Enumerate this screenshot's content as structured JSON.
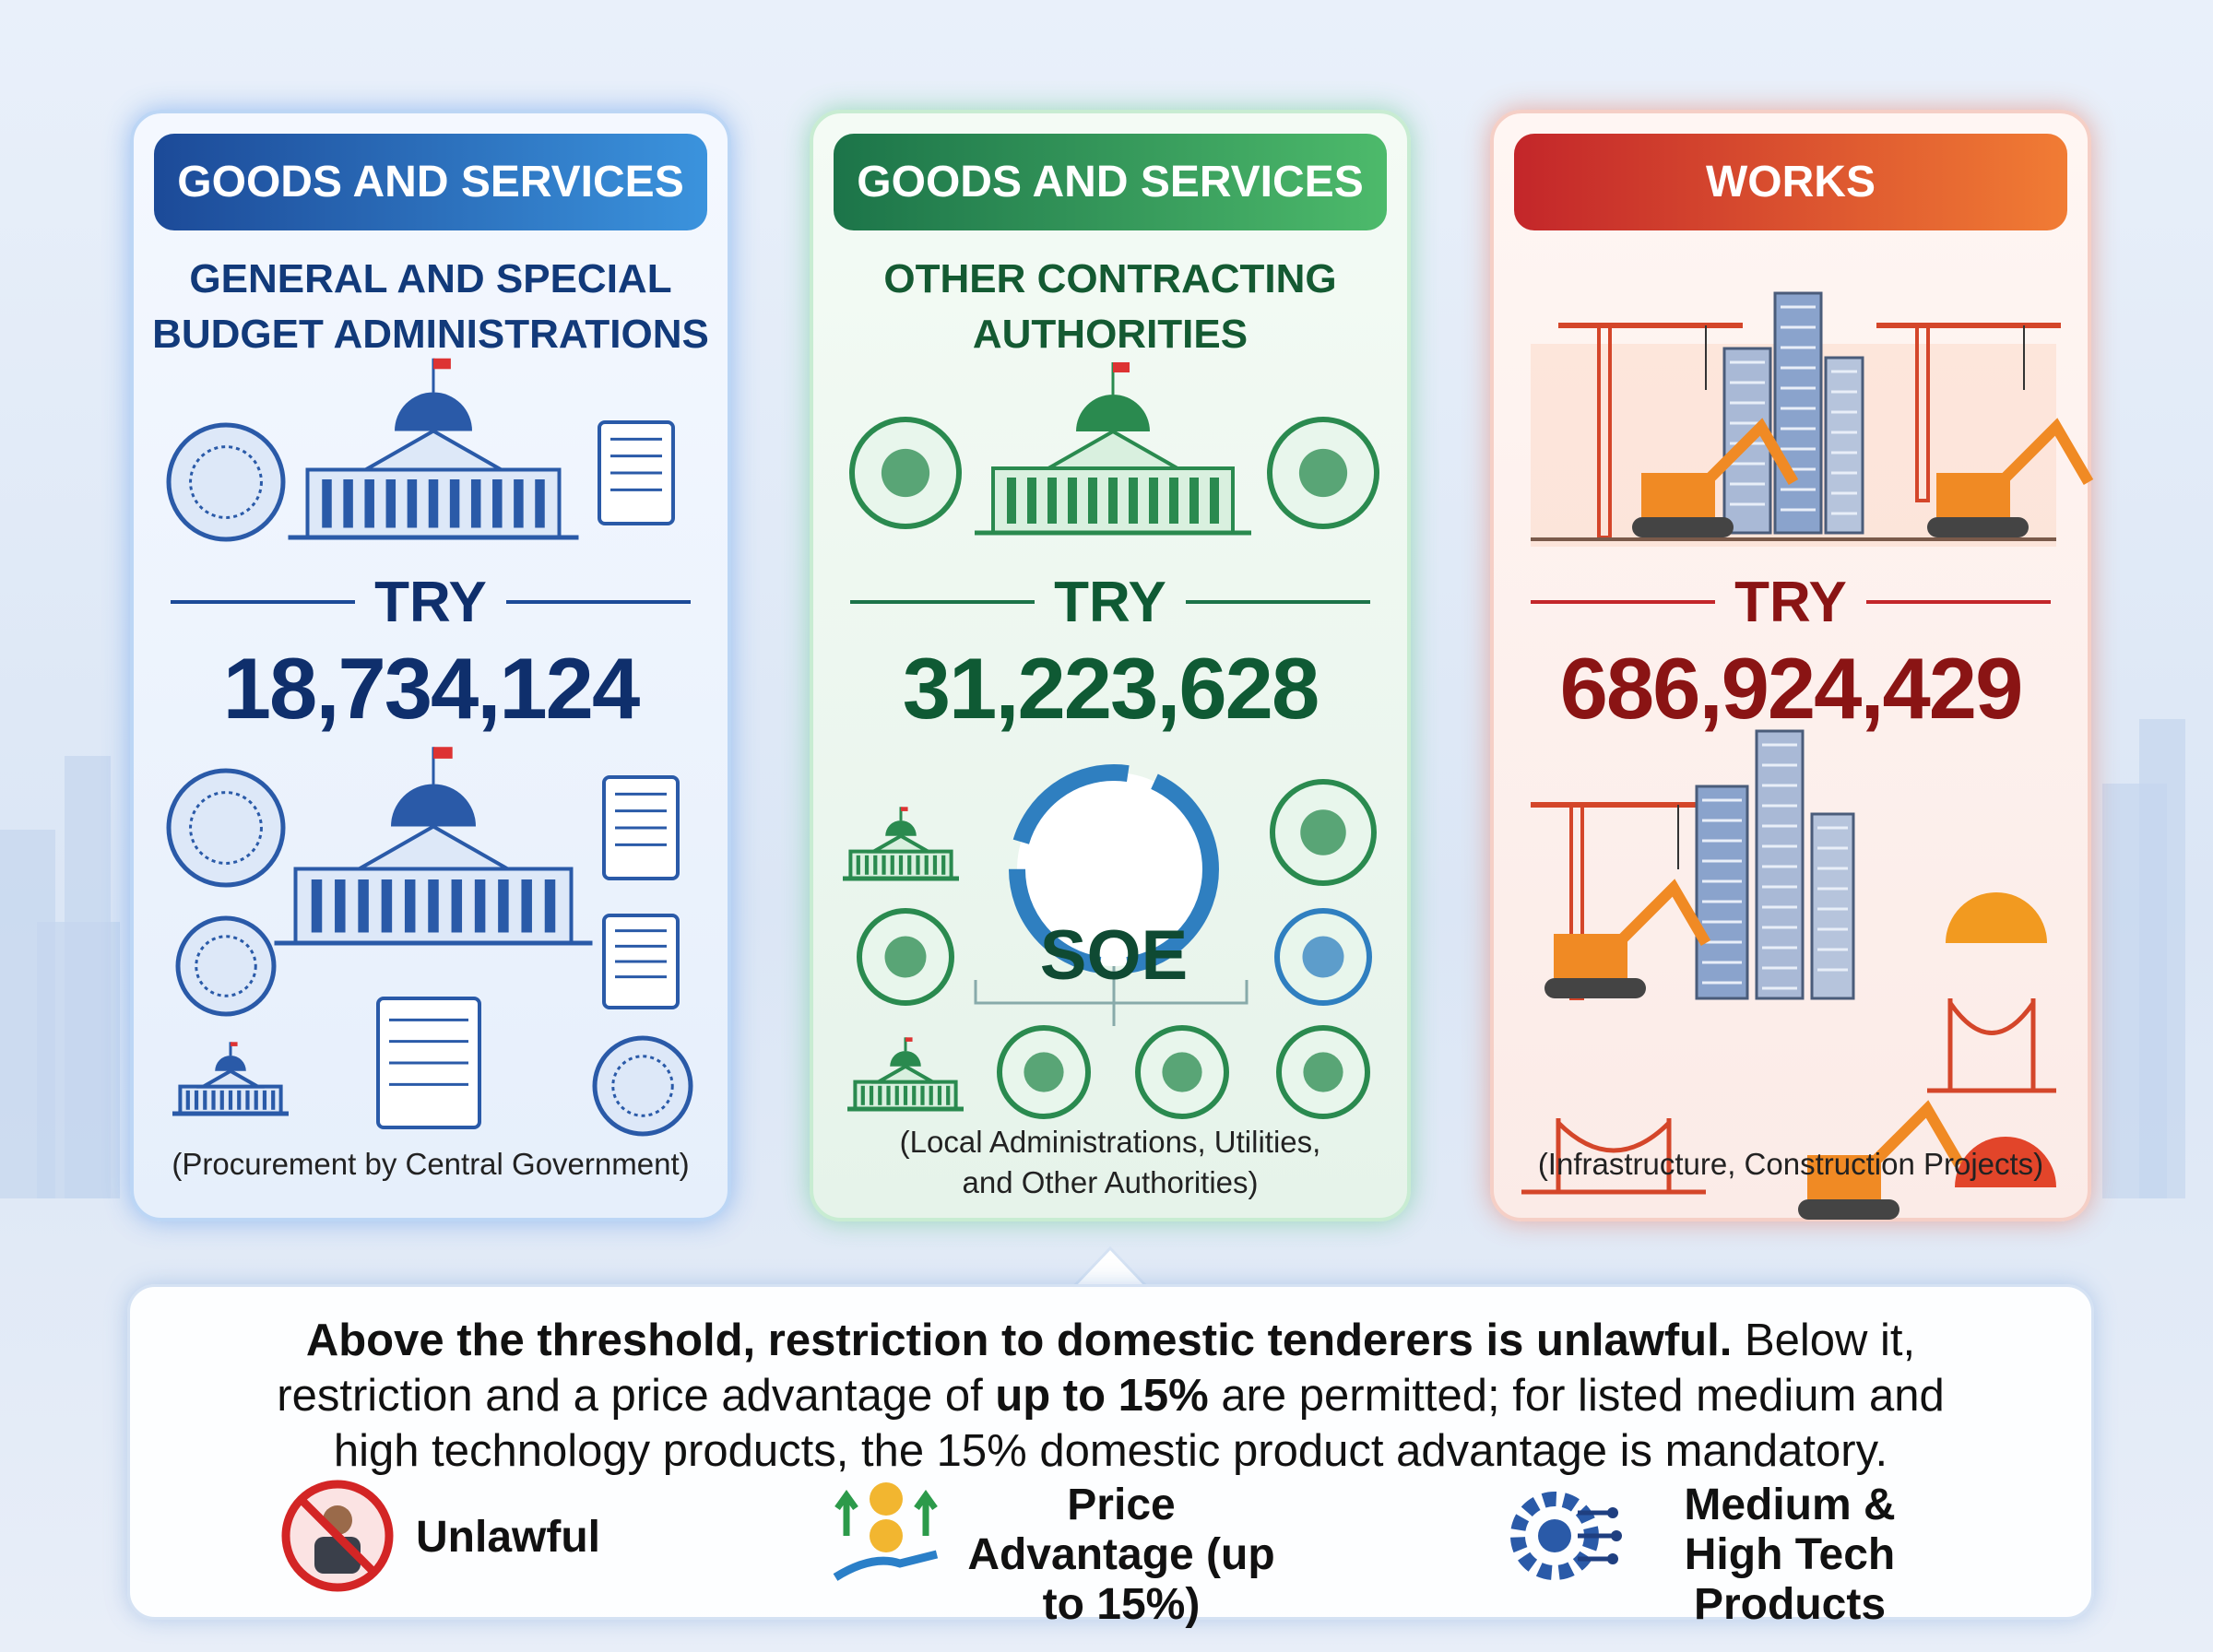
{
  "cards": [
    {
      "header": "GOODS AND SERVICES",
      "subtitle": "GENERAL AND SPECIAL BUDGET ADMINISTRATIONS",
      "currency": "TRY",
      "amount": "18,734,124",
      "note": "(Procurement by Central Government)"
    },
    {
      "header": "GOODS AND SERVICES",
      "subtitle": "OTHER CONTRACTING AUTHORITIES",
      "currency": "TRY",
      "amount": "31,223,628",
      "badge": "SOE",
      "note": "(Local Administrations, Utilities, and Other Authorities)"
    },
    {
      "header": "WORKS",
      "currency": "TRY",
      "amount": "686,924,429",
      "note": "(Infrastructure, Construction Projects)"
    }
  ],
  "summary": {
    "segments": [
      {
        "text": "Above the threshold, restriction to domestic tenderers is unlawful.",
        "bold": true
      },
      {
        "text": " Below it, restriction and a price advantage of ",
        "bold": false
      },
      {
        "text": "up to 15%",
        "bold": true
      },
      {
        "text": " are permitted; for listed medium and high technology products, the 15% domestic product advantage is mandatory.",
        "bold": false
      }
    ],
    "legend": [
      "Unlawful",
      "Price Advantage (up to 15%)",
      "Medium & High Tech Products"
    ]
  }
}
